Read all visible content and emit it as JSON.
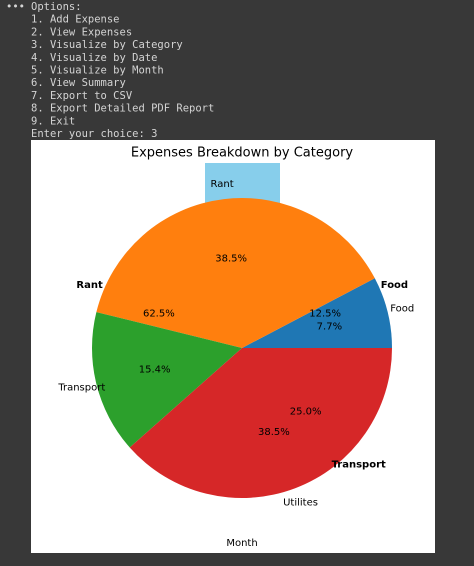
{
  "console": {
    "lines": [
      "Options:",
      "1. Add Expense",
      "2. View Expenses",
      "3. Visualize by Category",
      "4. Visualize by Date",
      "5. Visualize by Month",
      "6. View Summary",
      "7. Export to CSV",
      "8. Export Detailed PDF Report",
      "9. Exit",
      "Enter your choice: 3"
    ]
  },
  "chart_data": [
    {
      "type": "pie",
      "title": "Expenses Breakdown by Category",
      "categories": [
        "Food",
        "Rant",
        "Transport",
        "Utilites"
      ],
      "values": [
        7.7,
        38.5,
        15.4,
        38.5
      ],
      "value_labels": [
        "7.7%",
        "38.5%",
        "15.4%",
        "38.5%"
      ],
      "colors": [
        "#1f77b4",
        "#ff7f0e",
        "#2ca02c",
        "#d62728"
      ],
      "annotations": [
        "Month"
      ]
    },
    {
      "type": "pie-labels",
      "categories": [
        "Food",
        "Rant",
        "Transport"
      ],
      "values": [
        12.5,
        62.5,
        25.0
      ],
      "value_labels": [
        "12.5%",
        "62.5%",
        "25.0%"
      ]
    }
  ]
}
